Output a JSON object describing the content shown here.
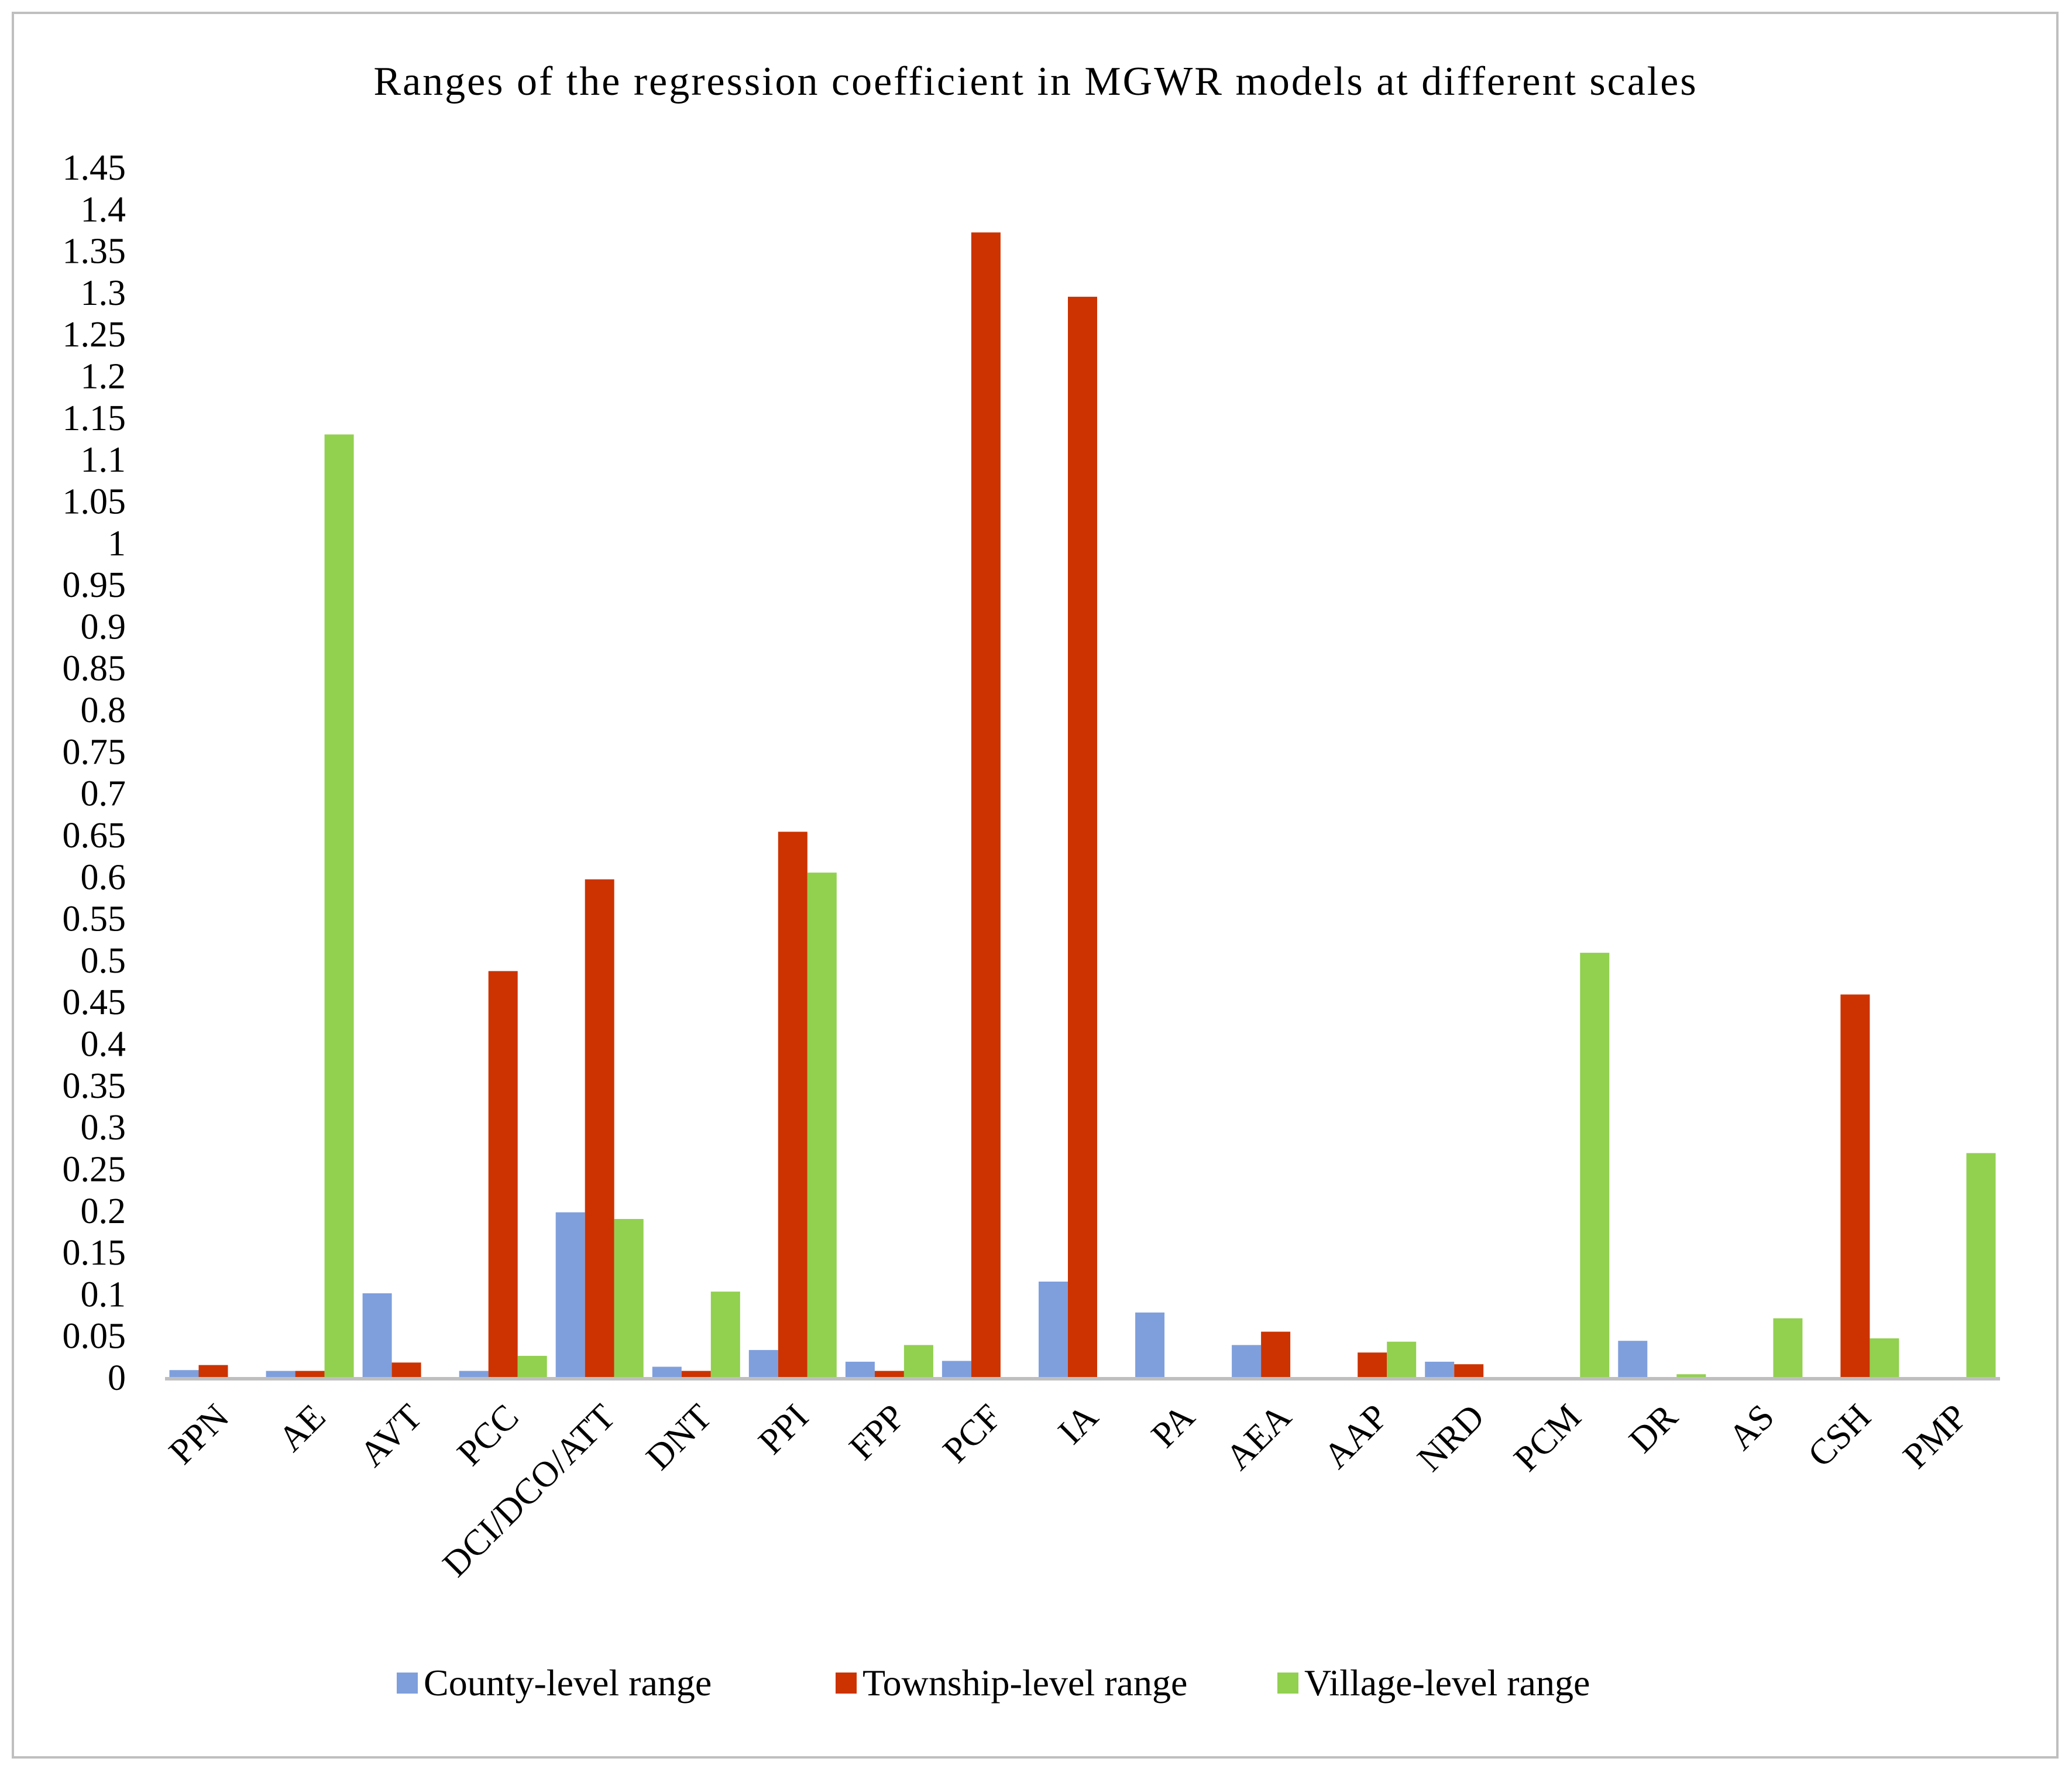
{
  "chart_data": {
    "type": "bar",
    "title": "Ranges of the regression coefficient in MGWR models at different scales",
    "xlabel": "",
    "ylabel": "",
    "ylim": [
      0,
      1.45
    ],
    "ytick_step": 0.05,
    "yticks": [
      "0",
      "0.05",
      "0.1",
      "0.15",
      "0.2",
      "0.25",
      "0.3",
      "0.35",
      "0.4",
      "0.45",
      "0.5",
      "0.55",
      "0.6",
      "0.65",
      "0.7",
      "0.75",
      "0.8",
      "0.85",
      "0.9",
      "0.95",
      "1",
      "1.05",
      "1.1",
      "1.15",
      "1.2",
      "1.25",
      "1.3",
      "1.35",
      "1.4",
      "1.45"
    ],
    "grid": false,
    "legend_position": "bottom",
    "categories": [
      "PPN",
      "AE",
      "AVT",
      "PCC",
      "DCI/DCO/ATT",
      "DNT",
      "PPI",
      "FPP",
      "PCF",
      "IA",
      "PA",
      "AEA",
      "AAP",
      "NRD",
      "PCM",
      "DR",
      "AS",
      "CSH",
      "PMP"
    ],
    "series": [
      {
        "name": "County-level range",
        "color": "#7f9fdc",
        "values": [
          0.009,
          0.008,
          0.101,
          0.008,
          0.198,
          0.013,
          0.033,
          0.019,
          0.02,
          0.115,
          0.078,
          0.039,
          0.0,
          0.019,
          0.0,
          0.044,
          0.0,
          0.0,
          0.0
        ]
      },
      {
        "name": "Township-level range",
        "color": "#cc3300",
        "values": [
          0.015,
          0.008,
          0.018,
          0.487,
          0.597,
          0.008,
          0.654,
          0.008,
          1.372,
          1.295,
          0.0,
          0.055,
          0.03,
          0.016,
          0.0,
          0.0,
          0.0,
          0.459,
          0.0
        ]
      },
      {
        "name": "Village-level range",
        "color": "#92d050",
        "values": [
          0.0,
          1.13,
          0.0,
          0.026,
          0.19,
          0.103,
          0.605,
          0.039,
          0.0,
          0.0,
          0.0,
          0.0,
          0.043,
          0.0,
          0.509,
          0.004,
          0.071,
          0.047,
          0.269
        ]
      }
    ]
  }
}
